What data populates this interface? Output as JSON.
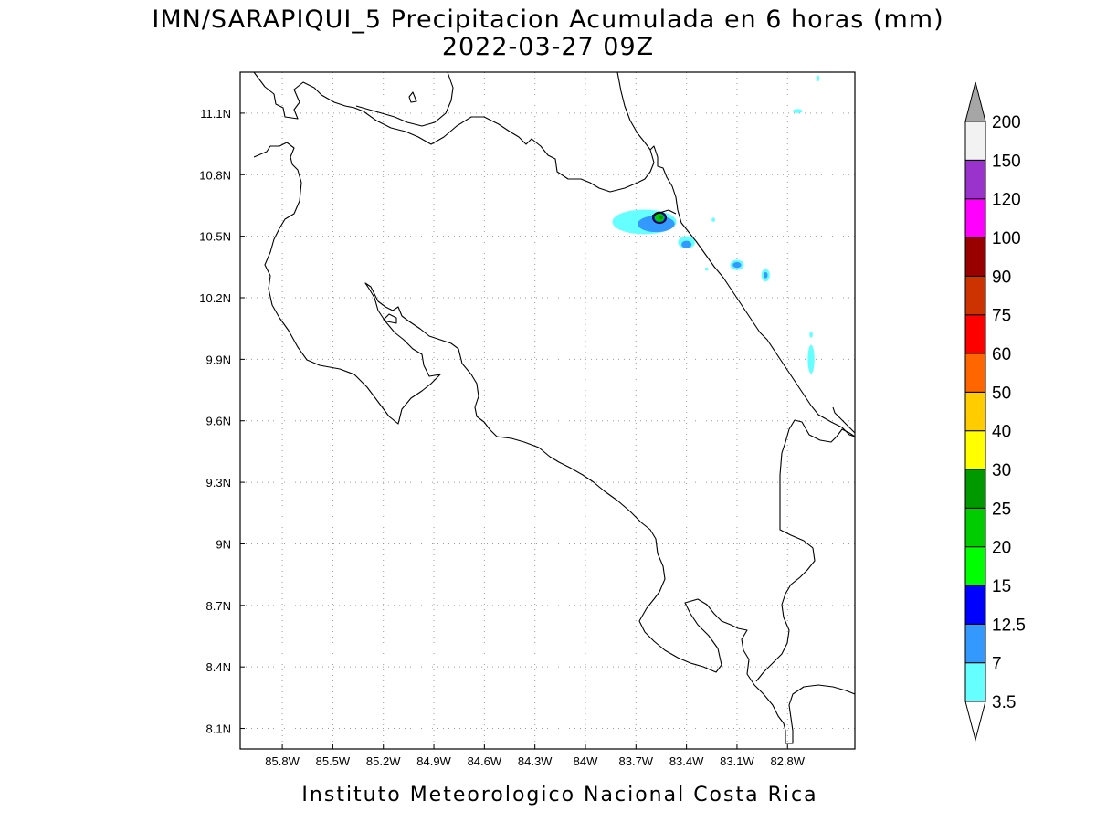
{
  "title": {
    "line1": "IMN/SARAPIQUI_5 Precipitacion Acumulada en 6 horas (mm)",
    "line2": "2022-03-27 09Z"
  },
  "footer": "Instituto Meteorologico Nacional Costa Rica",
  "map": {
    "lon_range": [
      -86.05,
      -82.4
    ],
    "lat_range": [
      8.0,
      11.3
    ],
    "lon_ticks": [
      {
        "value": -85.8,
        "label": "85.8W"
      },
      {
        "value": -85.5,
        "label": "85.5W"
      },
      {
        "value": -85.2,
        "label": "85.2W"
      },
      {
        "value": -84.9,
        "label": "84.9W"
      },
      {
        "value": -84.6,
        "label": "84.6W"
      },
      {
        "value": -84.3,
        "label": "84.3W"
      },
      {
        "value": -84.0,
        "label": "84W"
      },
      {
        "value": -83.7,
        "label": "83.7W"
      },
      {
        "value": -83.4,
        "label": "83.4W"
      },
      {
        "value": -83.1,
        "label": "83.1W"
      },
      {
        "value": -82.8,
        "label": "82.8W"
      }
    ],
    "lat_ticks": [
      {
        "value": 11.1,
        "label": "11.1N"
      },
      {
        "value": 10.8,
        "label": "10.8N"
      },
      {
        "value": 10.5,
        "label": "10.5N"
      },
      {
        "value": 10.2,
        "label": "10.2N"
      },
      {
        "value": 9.9,
        "label": "9.9N"
      },
      {
        "value": 9.6,
        "label": "9.6N"
      },
      {
        "value": 9.3,
        "label": "9.3N"
      },
      {
        "value": 9.0,
        "label": "9N"
      },
      {
        "value": 8.7,
        "label": "8.7N"
      },
      {
        "value": 8.4,
        "label": "8.4N"
      },
      {
        "value": 8.1,
        "label": "8.1N"
      }
    ],
    "grid": true,
    "precip_cells": [
      {
        "lon": -83.65,
        "lat": 10.57,
        "rx": 0.19,
        "ry": 0.06,
        "mm": 3.5
      },
      {
        "lon": -83.58,
        "lat": 10.56,
        "rx": 0.11,
        "ry": 0.04,
        "mm": 7
      },
      {
        "lon": -83.56,
        "lat": 10.59,
        "rx": 0.04,
        "ry": 0.025,
        "mm": 12.5
      },
      {
        "lon": -83.56,
        "lat": 10.59,
        "rx": 0.03,
        "ry": 0.02,
        "mm": 20
      },
      {
        "lon": -83.55,
        "lat": 10.59,
        "rx": 0.012,
        "ry": 0.008,
        "mm": 25
      },
      {
        "lon": -83.4,
        "lat": 10.47,
        "rx": 0.05,
        "ry": 0.03,
        "mm": 3.5
      },
      {
        "lon": -83.4,
        "lat": 10.46,
        "rx": 0.03,
        "ry": 0.018,
        "mm": 7
      },
      {
        "lon": -83.1,
        "lat": 10.36,
        "rx": 0.04,
        "ry": 0.025,
        "mm": 3.5
      },
      {
        "lon": -83.1,
        "lat": 10.36,
        "rx": 0.025,
        "ry": 0.014,
        "mm": 7
      },
      {
        "lon": -82.93,
        "lat": 10.31,
        "rx": 0.025,
        "ry": 0.03,
        "mm": 3.5
      },
      {
        "lon": -82.93,
        "lat": 10.31,
        "rx": 0.012,
        "ry": 0.015,
        "mm": 7
      },
      {
        "lon": -82.66,
        "lat": 9.9,
        "rx": 0.02,
        "ry": 0.07,
        "mm": 3.5
      },
      {
        "lon": -82.66,
        "lat": 10.02,
        "rx": 0.01,
        "ry": 0.015,
        "mm": 3.5
      },
      {
        "lon": -82.74,
        "lat": 11.11,
        "rx": 0.03,
        "ry": 0.01,
        "mm": 3.5
      },
      {
        "lon": -82.62,
        "lat": 11.27,
        "rx": 0.01,
        "ry": 0.015,
        "mm": 3.5
      },
      {
        "lon": -83.24,
        "lat": 10.58,
        "rx": 0.01,
        "ry": 0.01,
        "mm": 3.5
      },
      {
        "lon": -83.28,
        "lat": 10.34,
        "rx": 0.01,
        "ry": 0.008,
        "mm": 3.5
      }
    ]
  },
  "legend": {
    "levels": [
      {
        "label": "3.5",
        "color": "#66ffff"
      },
      {
        "label": "7",
        "color": "#3399ff"
      },
      {
        "label": "12.5",
        "color": "#0000ff"
      },
      {
        "label": "15",
        "color": "#00ff00"
      },
      {
        "label": "20",
        "color": "#00cc00"
      },
      {
        "label": "25",
        "color": "#009900"
      },
      {
        "label": "30",
        "color": "#ffff00"
      },
      {
        "label": "40",
        "color": "#ffcc00"
      },
      {
        "label": "50",
        "color": "#ff6600"
      },
      {
        "label": "60",
        "color": "#ff0000"
      },
      {
        "label": "75",
        "color": "#cc3300"
      },
      {
        "label": "90",
        "color": "#990000"
      },
      {
        "label": "100",
        "color": "#ff00ff"
      },
      {
        "label": "120",
        "color": "#9933cc"
      },
      {
        "label": "150",
        "color": "#f2f2f2"
      },
      {
        "label": "200",
        "color": "#a6a6a6"
      }
    ],
    "under_color": "#ffffff",
    "over_color": "#a6a6a6"
  }
}
